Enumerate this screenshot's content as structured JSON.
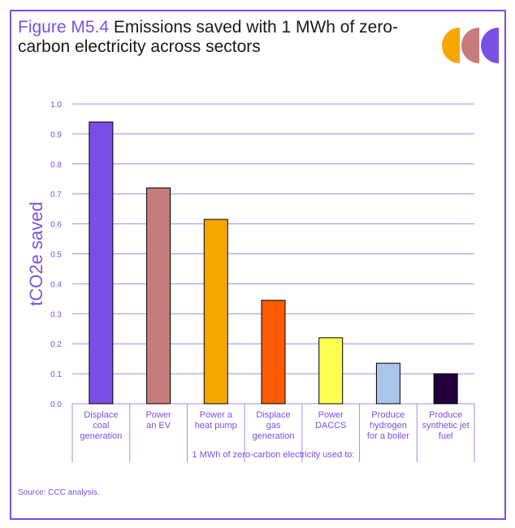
{
  "header": {
    "figure_label": "Figure M5.4",
    "title_rest": " Emissions saved with 1 MWh of zero-carbon electricity across sectors"
  },
  "logo": {
    "icon": "ccc-logo-icon",
    "colors": [
      "#f7a600",
      "#c77b7d",
      "#7a4fe6"
    ]
  },
  "source": "Source: CCC analysis.",
  "colors": {
    "frame": "#7a4fe6",
    "gridline": "#9c8ff0",
    "ylabel": "#7a4fe6",
    "tick_text": "#7a4fe6",
    "category_text": "#7a4fe6"
  },
  "chart_data": {
    "type": "bar",
    "ylabel": "tCO2e saved",
    "xlabel": "1 MWh of zero-carbon electricity used to:",
    "ylim": [
      0,
      1.0
    ],
    "yticks": [
      "0.0",
      "0.1",
      "0.2",
      "0.3",
      "0.4",
      "0.5",
      "0.6",
      "0.7",
      "0.8",
      "0.9",
      "1.0"
    ],
    "grid": true,
    "legend": "none",
    "categories": [
      [
        "Displace",
        "coal",
        "generation"
      ],
      [
        "Power",
        "an EV"
      ],
      [
        "Power a",
        "heat pump"
      ],
      [
        "Displace",
        "gas",
        "generation"
      ],
      [
        "Power",
        "DACCS"
      ],
      [
        "Produce",
        "hydrogen",
        "for a boiler"
      ],
      [
        "Produce",
        "synthetic jet",
        "fuel"
      ]
    ],
    "values": [
      0.94,
      0.72,
      0.615,
      0.345,
      0.22,
      0.135,
      0.1
    ],
    "bar_colors": [
      "#7a4fe6",
      "#c77b7d",
      "#f7a600",
      "#ff5b00",
      "#ffff52",
      "#aac4ea",
      "#24003d"
    ]
  }
}
